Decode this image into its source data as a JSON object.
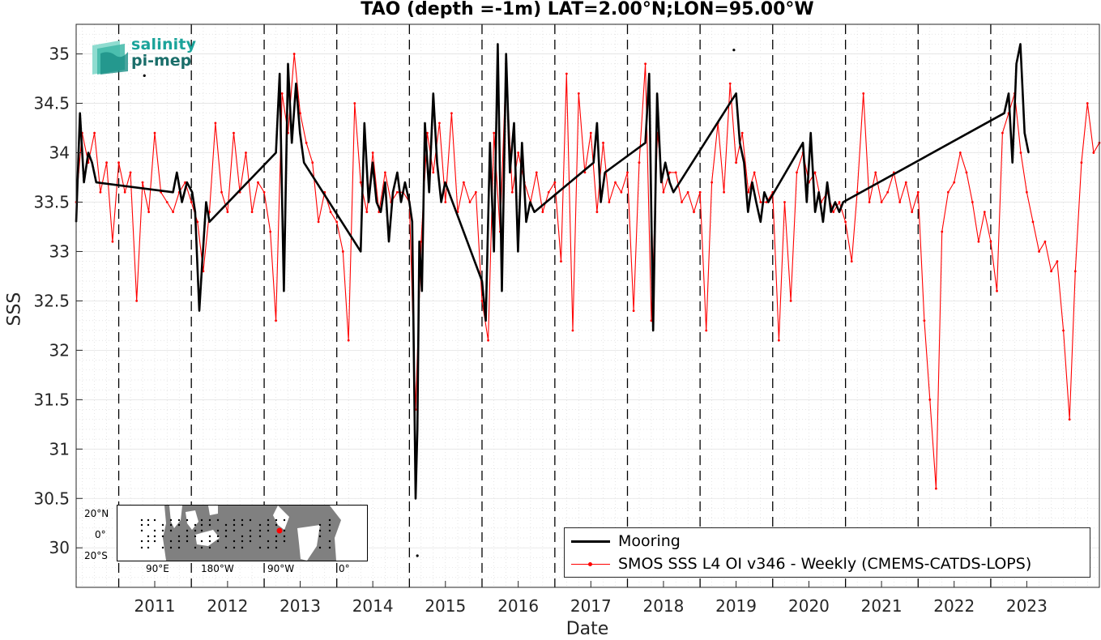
{
  "chart_data": {
    "type": "line",
    "title": "TAO (depth =-1m) LAT=2.00°N;LON=95.00°W",
    "xlabel": "Date",
    "ylabel": "SSS",
    "xlim": [
      "2010-06-01",
      "2024-06-30"
    ],
    "ylim": [
      29.6,
      35.3
    ],
    "x_ticks": [
      "2011",
      "2012",
      "2013",
      "2014",
      "2015",
      "2016",
      "2017",
      "2018",
      "2019",
      "2020",
      "2021",
      "2022",
      "2023"
    ],
    "y_ticks": [
      "30",
      "30.5",
      "31",
      "31.5",
      "32",
      "32.5",
      "33",
      "33.5",
      "34",
      "34.5",
      "35"
    ],
    "grid": "minor dotted",
    "year_markers": "dashed vertical lines at each January 1",
    "legend_position": "bottom-right",
    "series": [
      {
        "name": "Mooring",
        "color": "#000000",
        "style": "thick line",
        "x": [
          "2010-06-01",
          "2010-06-20",
          "2010-07-10",
          "2010-08-01",
          "2010-08-20",
          "2010-09-10",
          "2011-10-01",
          "2011-10-20",
          "2011-11-15",
          "2011-12-10",
          "2012-01-05",
          "2012-01-20",
          "2012-02-10",
          "2012-02-25",
          "2012-03-15",
          "2012-04-01",
          "2013-03-01",
          "2013-03-20",
          "2013-04-10",
          "2013-05-01",
          "2013-05-20",
          "2013-06-10",
          "2013-06-30",
          "2013-07-20",
          "2014-05-01",
          "2014-05-20",
          "2014-06-10",
          "2014-06-30",
          "2014-07-20",
          "2014-08-10",
          "2014-09-01",
          "2014-09-20",
          "2014-10-10",
          "2014-11-01",
          "2014-11-20",
          "2014-12-10",
          "2015-01-01",
          "2015-01-15",
          "2015-02-01",
          "2015-02-10",
          "2015-02-20",
          "2015-03-05",
          "2015-03-20",
          "2015-04-10",
          "2015-05-01",
          "2015-05-20",
          "2015-06-10",
          "2015-06-30",
          "2016-01-01",
          "2016-01-20",
          "2016-02-10",
          "2016-03-01",
          "2016-03-20",
          "2016-04-10",
          "2016-05-01",
          "2016-05-20",
          "2016-06-10",
          "2016-06-30",
          "2016-07-20",
          "2016-08-10",
          "2016-08-30",
          "2016-09-20",
          "2017-07-15",
          "2017-08-01",
          "2017-08-20",
          "2017-09-10",
          "2018-04-01",
          "2018-04-20",
          "2018-05-10",
          "2018-05-30",
          "2018-06-20",
          "2018-07-10",
          "2018-08-01",
          "2018-08-20",
          "2019-07-01",
          "2019-07-20",
          "2019-08-10",
          "2019-08-30",
          "2019-09-20",
          "2019-10-10",
          "2019-11-01",
          "2019-11-20",
          "2019-12-10",
          "2020-06-01",
          "2020-06-20",
          "2020-07-10",
          "2020-08-01",
          "2020-08-20",
          "2020-09-10",
          "2020-10-01",
          "2020-10-20",
          "2020-11-10",
          "2020-12-01",
          "2020-12-20",
          "2023-03-10",
          "2023-04-01",
          "2023-04-20",
          "2023-05-10",
          "2023-05-30",
          "2023-06-20",
          "2023-07-10"
        ],
        "y": [
          33.3,
          34.4,
          33.7,
          34.0,
          33.9,
          33.7,
          33.6,
          33.8,
          33.5,
          33.7,
          33.6,
          33.4,
          32.4,
          32.9,
          33.5,
          33.3,
          34.0,
          34.8,
          32.6,
          34.9,
          34.1,
          34.7,
          34.2,
          33.9,
          33.0,
          34.3,
          33.5,
          33.9,
          33.5,
          33.4,
          33.7,
          33.1,
          33.6,
          33.8,
          33.5,
          33.7,
          33.5,
          33.3,
          30.5,
          31.2,
          33.1,
          32.6,
          34.3,
          33.6,
          34.6,
          33.9,
          33.5,
          33.7,
          32.7,
          32.3,
          34.1,
          33.0,
          35.1,
          32.6,
          35.0,
          33.8,
          34.3,
          33.0,
          34.1,
          33.3,
          33.5,
          33.4,
          33.9,
          34.3,
          33.5,
          33.8,
          34.1,
          34.8,
          32.2,
          34.6,
          33.7,
          33.9,
          33.7,
          33.6,
          34.6,
          34.1,
          33.9,
          33.4,
          33.7,
          33.5,
          33.3,
          33.6,
          33.5,
          34.1,
          33.5,
          34.2,
          33.4,
          33.6,
          33.3,
          33.7,
          33.4,
          33.5,
          33.4,
          33.5,
          34.4,
          34.6,
          33.9,
          34.9,
          35.1,
          34.2,
          34.0
        ]
      },
      {
        "name": "SMOS SSS L4 OI v346 - Weekly (CMEMS-CATDS-LOPS)",
        "color": "#ff0000",
        "style": "thin line with dot markers",
        "x": [
          "2010-06-01",
          "2010-07-01",
          "2010-08-01",
          "2010-09-01",
          "2010-10-01",
          "2010-11-01",
          "2010-12-01",
          "2011-01-01",
          "2011-02-01",
          "2011-03-01",
          "2011-04-01",
          "2011-05-01",
          "2011-06-01",
          "2011-07-01",
          "2011-08-01",
          "2011-09-01",
          "2011-10-01",
          "2011-11-01",
          "2011-12-01",
          "2012-01-01",
          "2012-02-01",
          "2012-03-01",
          "2012-04-01",
          "2012-05-01",
          "2012-06-01",
          "2012-07-01",
          "2012-08-01",
          "2012-09-01",
          "2012-10-01",
          "2012-11-01",
          "2012-12-01",
          "2013-01-01",
          "2013-02-01",
          "2013-03-01",
          "2013-04-01",
          "2013-05-01",
          "2013-06-01",
          "2013-07-01",
          "2013-08-01",
          "2013-09-01",
          "2013-10-01",
          "2013-11-01",
          "2013-12-01",
          "2014-01-01",
          "2014-02-01",
          "2014-03-01",
          "2014-04-01",
          "2014-05-01",
          "2014-06-01",
          "2014-07-01",
          "2014-08-01",
          "2014-09-01",
          "2014-10-01",
          "2014-11-01",
          "2014-12-01",
          "2015-01-01",
          "2015-02-01",
          "2015-03-01",
          "2015-04-01",
          "2015-05-01",
          "2015-06-01",
          "2015-07-01",
          "2015-08-01",
          "2015-09-01",
          "2015-10-01",
          "2015-11-01",
          "2015-12-01",
          "2016-01-01",
          "2016-02-01",
          "2016-03-01",
          "2016-04-01",
          "2016-05-01",
          "2016-06-01",
          "2016-07-01",
          "2016-08-01",
          "2016-09-01",
          "2016-10-01",
          "2016-11-01",
          "2016-12-01",
          "2017-01-01",
          "2017-02-01",
          "2017-03-01",
          "2017-04-01",
          "2017-05-01",
          "2017-06-01",
          "2017-07-01",
          "2017-08-01",
          "2017-09-01",
          "2017-10-01",
          "2017-11-01",
          "2017-12-01",
          "2018-01-01",
          "2018-02-01",
          "2018-03-01",
          "2018-04-01",
          "2018-05-01",
          "2018-06-01",
          "2018-07-01",
          "2018-08-01",
          "2018-09-01",
          "2018-10-01",
          "2018-11-01",
          "2018-12-01",
          "2019-01-01",
          "2019-02-01",
          "2019-03-01",
          "2019-04-01",
          "2019-05-01",
          "2019-06-01",
          "2019-07-01",
          "2019-08-01",
          "2019-09-01",
          "2019-10-01",
          "2019-11-01",
          "2019-12-01",
          "2020-01-01",
          "2020-02-01",
          "2020-03-01",
          "2020-04-01",
          "2020-05-01",
          "2020-06-01",
          "2020-07-01",
          "2020-08-01",
          "2020-09-01",
          "2020-10-01",
          "2020-11-01",
          "2020-12-01",
          "2021-01-01",
          "2021-02-01",
          "2021-03-01",
          "2021-04-01",
          "2021-05-01",
          "2021-06-01",
          "2021-07-01",
          "2021-08-01",
          "2021-09-01",
          "2021-10-01",
          "2021-11-01",
          "2021-12-01",
          "2022-01-01",
          "2022-02-01",
          "2022-03-01",
          "2022-04-01",
          "2022-05-01",
          "2022-06-01",
          "2022-07-01",
          "2022-08-01",
          "2022-09-01",
          "2022-10-01",
          "2022-11-01",
          "2022-12-01",
          "2023-01-01",
          "2023-02-01",
          "2023-03-01",
          "2023-04-01",
          "2023-05-01",
          "2023-06-01",
          "2023-07-01",
          "2023-08-01",
          "2023-09-01",
          "2023-10-01",
          "2023-11-01",
          "2023-12-01",
          "2024-01-01",
          "2024-02-01",
          "2024-03-01",
          "2024-04-01",
          "2024-05-01",
          "2024-06-01",
          "2024-06-30"
        ],
        "y": [
          33.5,
          34.2,
          33.9,
          34.2,
          33.6,
          33.9,
          33.1,
          33.9,
          33.6,
          33.8,
          32.5,
          33.7,
          33.4,
          34.2,
          33.6,
          33.5,
          33.4,
          33.6,
          33.7,
          33.5,
          33.3,
          32.8,
          33.4,
          34.3,
          33.6,
          33.4,
          34.2,
          33.6,
          34.0,
          33.4,
          33.7,
          33.6,
          33.2,
          32.3,
          34.6,
          34.2,
          35.0,
          34.4,
          34.1,
          33.9,
          33.3,
          33.6,
          33.4,
          33.3,
          33.0,
          32.1,
          34.5,
          33.7,
          33.4,
          34.0,
          33.4,
          33.8,
          33.5,
          33.6,
          33.6,
          33.5,
          31.4,
          33.1,
          34.2,
          33.8,
          34.3,
          33.5,
          34.4,
          33.4,
          33.7,
          33.5,
          33.6,
          32.5,
          32.1,
          34.2,
          33.2,
          34.9,
          33.6,
          34.0,
          33.7,
          33.5,
          33.8,
          33.4,
          33.6,
          33.7,
          32.9,
          34.8,
          32.2,
          34.6,
          33.8,
          34.2,
          33.4,
          34.1,
          33.5,
          33.7,
          33.6,
          33.8,
          32.4,
          33.9,
          34.9,
          32.3,
          34.2,
          33.6,
          33.8,
          33.8,
          33.5,
          33.6,
          33.4,
          33.6,
          32.2,
          33.7,
          34.3,
          33.6,
          34.7,
          33.9,
          34.2,
          33.6,
          33.8,
          33.5,
          33.5,
          33.6,
          32.1,
          33.5,
          32.5,
          33.8,
          34.0,
          33.7,
          33.8,
          33.5,
          33.6,
          33.4,
          33.5,
          33.3,
          32.9,
          33.6,
          34.6,
          33.5,
          33.8,
          33.5,
          33.6,
          33.8,
          33.5,
          33.7,
          33.4,
          33.6,
          32.3,
          31.5,
          30.6,
          33.2,
          33.6,
          33.7,
          34.0,
          33.8,
          33.5,
          33.1,
          33.4,
          33.1,
          32.6,
          34.2,
          34.4,
          34.6,
          34.0,
          33.6,
          33.3,
          33.0,
          33.1,
          32.8,
          32.9,
          32.2,
          31.3,
          32.8,
          33.9,
          34.5,
          34.0,
          34.1
        ]
      }
    ]
  },
  "logo": {
    "line1": "salinity",
    "line2": "pi-mep"
  },
  "inset_map": {
    "lat_labels": [
      "20°N",
      "0°",
      "20°S"
    ],
    "lon_labels": [
      "90°E",
      "180°W",
      "90°W",
      "0°"
    ],
    "marker_color": "#ff0000"
  }
}
